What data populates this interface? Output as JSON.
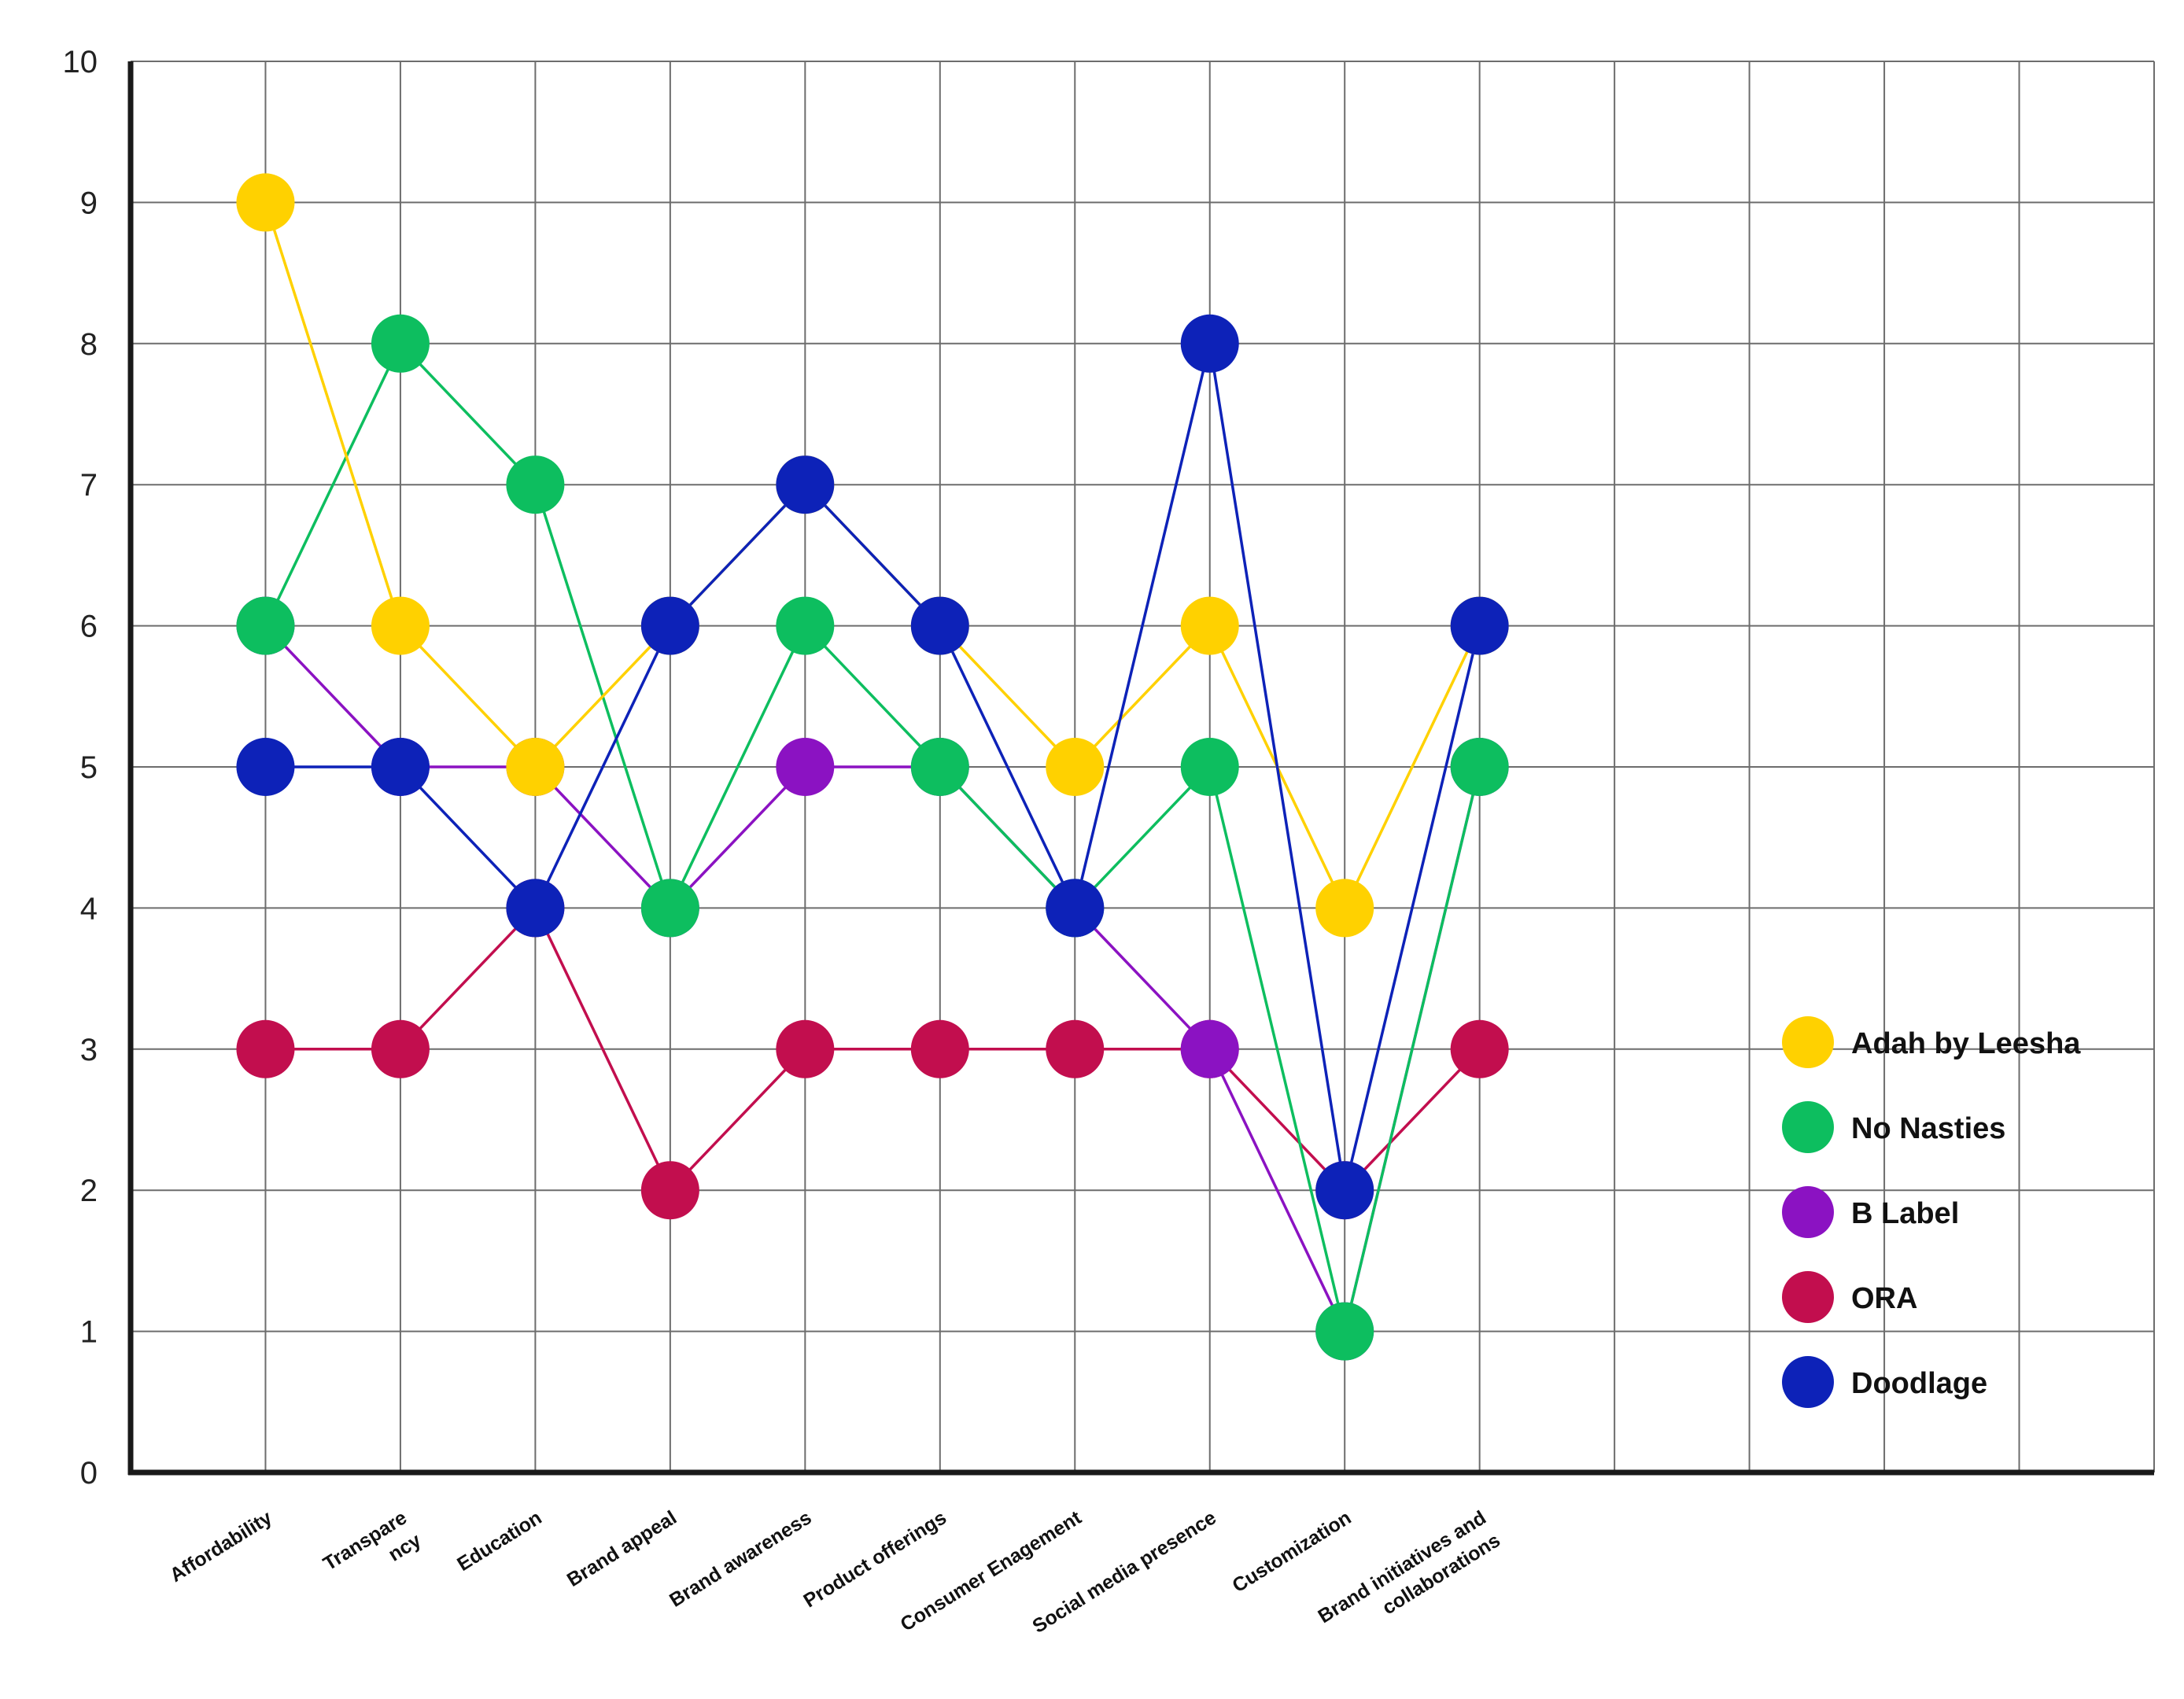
{
  "chart_data": {
    "type": "line",
    "title": "",
    "xlabel": "",
    "ylabel": "",
    "ylim": [
      0,
      10
    ],
    "yticks": [
      0,
      1,
      2,
      3,
      4,
      5,
      6,
      7,
      8,
      9,
      10
    ],
    "grid": true,
    "legend_position": "right",
    "grid_columns": 15,
    "categories": [
      "Affordability",
      "Transpare\nncy",
      "Education",
      "Brand appeal",
      "Brand awareness",
      "Product offerings",
      "Consumer Enagement",
      "Social media presence",
      "Customization",
      "Brand initiatives and\ncollaborations"
    ],
    "series": [
      {
        "name": "ORA",
        "color": "#C20E4E",
        "values": [
          3,
          3,
          4,
          2,
          3,
          3,
          3,
          3,
          2,
          3
        ]
      },
      {
        "name": "B Label",
        "color": "#8B12C2",
        "values": [
          6,
          5,
          5,
          4,
          5,
          5,
          4,
          3,
          1,
          5
        ]
      },
      {
        "name": "No Nasties",
        "color": "#0DBE5F",
        "values": [
          6,
          8,
          7,
          4,
          6,
          5,
          4,
          5,
          1,
          5
        ]
      },
      {
        "name": "Adah by Leesha",
        "color": "#FFD100",
        "values": [
          9,
          6,
          5,
          6,
          7,
          6,
          5,
          6,
          4,
          6
        ]
      },
      {
        "name": "Doodlage",
        "color": "#0D22B8",
        "values": [
          5,
          5,
          4,
          6,
          7,
          6,
          4,
          8,
          2,
          6
        ]
      }
    ],
    "legend": [
      "Adah by Leesha",
      "No Nasties",
      "B Label",
      "ORA",
      "Doodlage"
    ]
  }
}
